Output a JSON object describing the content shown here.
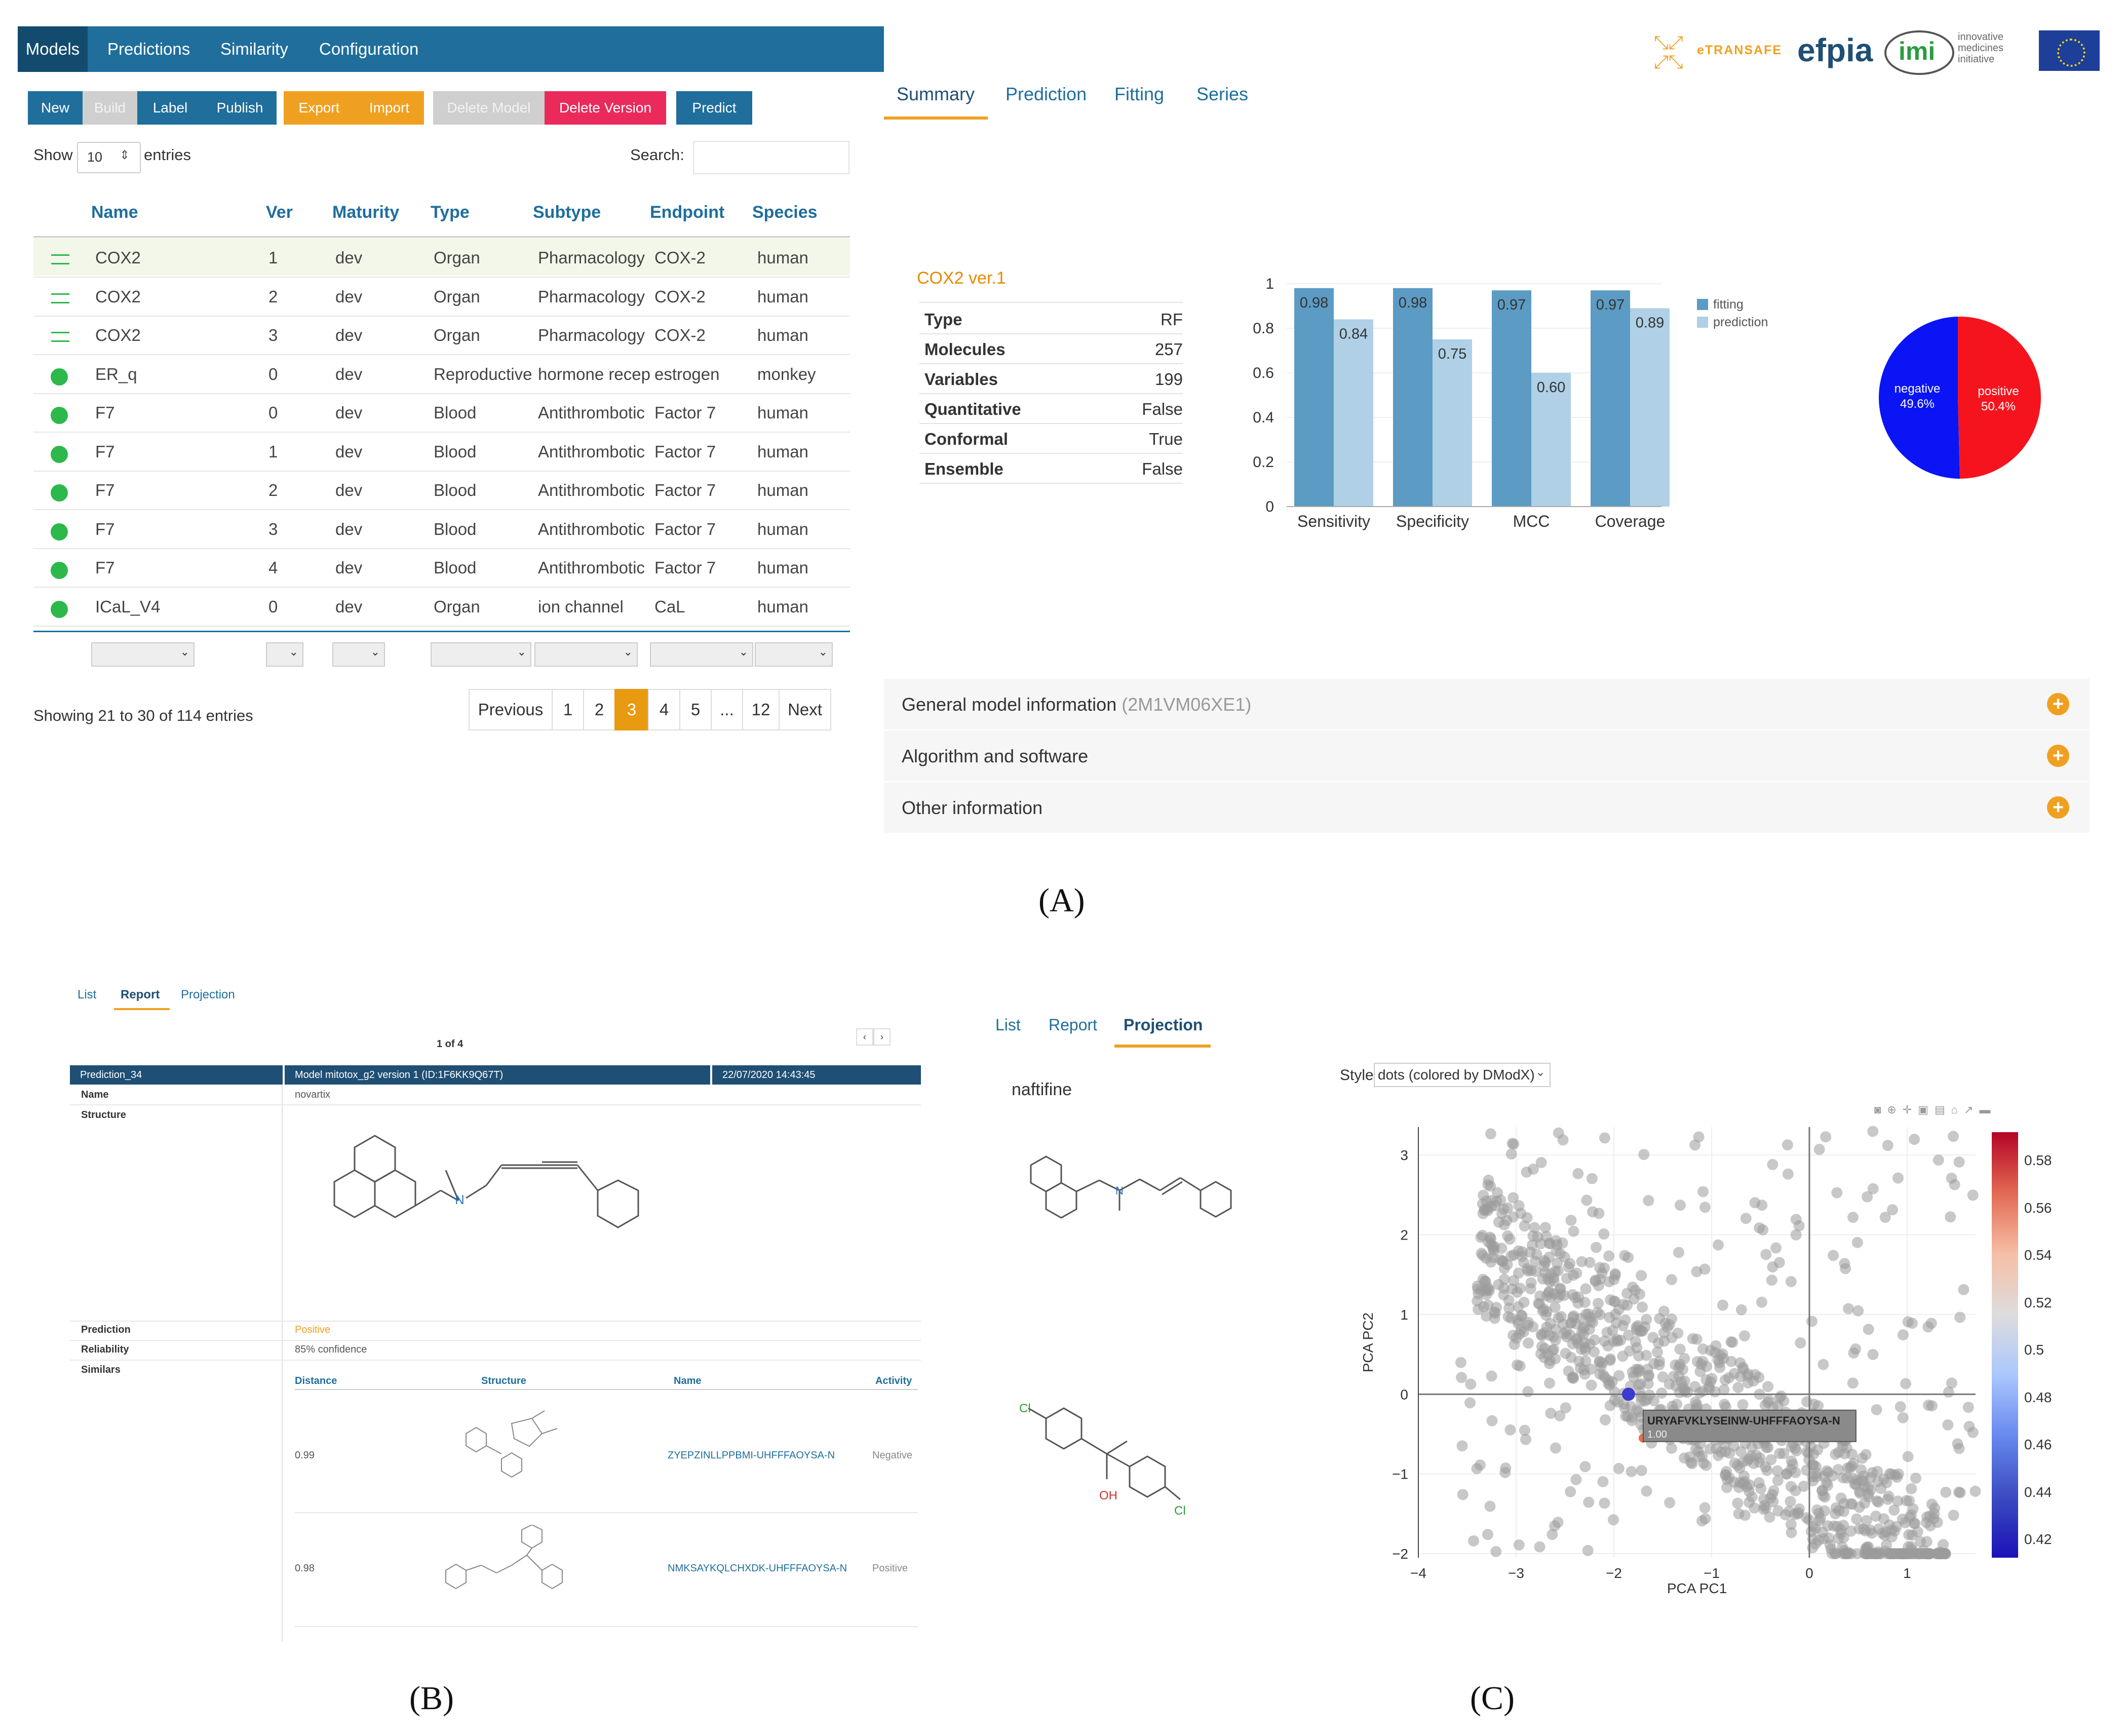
{
  "panelA": {
    "nav": {
      "tabs": [
        "Models",
        "Predictions",
        "Similarity",
        "Configuration"
      ]
    },
    "toolbar": {
      "new": "New",
      "build": "Build",
      "label": "Label",
      "publish": "Publish",
      "export": "Export",
      "import": "Import",
      "delete_model": "Delete Model",
      "delete_version": "Delete Version",
      "predict": "Predict"
    },
    "show_label": "Show",
    "entries_value": "10",
    "entries_label": "entries",
    "search_label": "Search:",
    "columns": [
      "Name",
      "Ver",
      "Maturity",
      "Type",
      "Subtype",
      "Endpoint",
      "Species"
    ],
    "rows": [
      {
        "name": "COX2",
        "ver": "1",
        "maturity": "dev",
        "type": "Organ",
        "subtype": "Pharmacology",
        "endpoint": "COX-2",
        "species": "human",
        "status": "dual"
      },
      {
        "name": "COX2",
        "ver": "2",
        "maturity": "dev",
        "type": "Organ",
        "subtype": "Pharmacology",
        "endpoint": "COX-2",
        "species": "human",
        "status": "dual"
      },
      {
        "name": "COX2",
        "ver": "3",
        "maturity": "dev",
        "type": "Organ",
        "subtype": "Pharmacology",
        "endpoint": "COX-2",
        "species": "human",
        "status": "dual"
      },
      {
        "name": "ER_q",
        "ver": "0",
        "maturity": "dev",
        "type": "Reproductive",
        "subtype": "hormone recep",
        "endpoint": "estrogen",
        "species": "monkey",
        "status": "ok"
      },
      {
        "name": "F7",
        "ver": "0",
        "maturity": "dev",
        "type": "Blood",
        "subtype": "Antithrombotic",
        "endpoint": "Factor 7",
        "species": "human",
        "status": "ok"
      },
      {
        "name": "F7",
        "ver": "1",
        "maturity": "dev",
        "type": "Blood",
        "subtype": "Antithrombotic",
        "endpoint": "Factor 7",
        "species": "human",
        "status": "ok"
      },
      {
        "name": "F7",
        "ver": "2",
        "maturity": "dev",
        "type": "Blood",
        "subtype": "Antithrombotic",
        "endpoint": "Factor 7",
        "species": "human",
        "status": "ok"
      },
      {
        "name": "F7",
        "ver": "3",
        "maturity": "dev",
        "type": "Blood",
        "subtype": "Antithrombotic",
        "endpoint": "Factor 7",
        "species": "human",
        "status": "ok"
      },
      {
        "name": "F7",
        "ver": "4",
        "maturity": "dev",
        "type": "Blood",
        "subtype": "Antithrombotic",
        "endpoint": "Factor 7",
        "species": "human",
        "status": "ok"
      },
      {
        "name": "ICaL_V4",
        "ver": "0",
        "maturity": "dev",
        "type": "Organ",
        "subtype": "ion channel",
        "endpoint": "CaL",
        "species": "human",
        "status": "ok"
      }
    ],
    "showing": "Showing 21 to 30 of 114 entries",
    "pagination": [
      "Previous",
      "1",
      "2",
      "3",
      "4",
      "5",
      "...",
      "12",
      "Next"
    ],
    "logos": {
      "etransafe": "eTRANSAFE",
      "efpia": "efpia",
      "imi": "imi",
      "imi_text": "innovative medicines initiative"
    },
    "subtabs": [
      "Summary",
      "Prediction",
      "Fitting",
      "Series"
    ],
    "model_title": "COX2 ver.1",
    "summary": [
      {
        "k": "Type",
        "v": "RF"
      },
      {
        "k": "Molecules",
        "v": "257"
      },
      {
        "k": "Variables",
        "v": "199"
      },
      {
        "k": "Quantitative",
        "v": "False"
      },
      {
        "k": "Conformal",
        "v": "True"
      },
      {
        "k": "Ensemble",
        "v": "False"
      }
    ],
    "accordion": [
      {
        "title": "General model information",
        "note": "(2M1VM06XE1)"
      },
      {
        "title": "Algorithm and software",
        "note": ""
      },
      {
        "title": "Other information",
        "note": ""
      }
    ],
    "pie_labels": {
      "neg": "negative",
      "neg_pct": "49.6%",
      "pos": "positive",
      "pos_pct": "50.4%"
    },
    "colors": {
      "nav": "#1f6e9c",
      "fitting": "#5b9bc4",
      "prediction": "#afd0e6",
      "negative": "#0a14f5",
      "positive": "#f5141e",
      "accent": "#f0a020"
    }
  },
  "panelB": {
    "tabs": [
      "List",
      "Report",
      "Projection"
    ],
    "page": "1 of 4",
    "header": {
      "prediction": "Prediction_34",
      "model": "Model mitotox_g2 version 1 (ID:1F6KK9Q67T)",
      "date": "22/07/2020 14:43:45"
    },
    "name_label": "Name",
    "name_value": "novartix",
    "structure_label": "Structure",
    "prediction_label": "Prediction",
    "prediction_value": "Positive",
    "reliability_label": "Reliability",
    "reliability_value": "85% confidence",
    "similars_label": "Similars",
    "sim_columns": [
      "Distance",
      "Structure",
      "Name",
      "Activity"
    ],
    "similars": [
      {
        "distance": "0.99",
        "name": "ZYEPZINLLPPBMI-UHFFFAOYSA-N",
        "activity": "Negative"
      },
      {
        "distance": "0.98",
        "name": "NMKSAYKQLCHXDK-UHFFFAOYSA-N",
        "activity": "Positive"
      }
    ]
  },
  "panelC": {
    "tabs": [
      "List",
      "Report",
      "Projection"
    ],
    "compound": "naftifine",
    "style_label": "Style",
    "style_value": "dots (colored by DModX)",
    "tooltip_name": "URYAFVKLYSEINW-UHFFFAOYSA-N",
    "tooltip_value": "1.00",
    "colorbar_ticks": [
      "0.58",
      "0.56",
      "0.54",
      "0.52",
      "0.5",
      "0.48",
      "0.46",
      "0.44",
      "0.42"
    ]
  },
  "captions": [
    "(A)",
    "(B)",
    "(C)"
  ],
  "chart_data": [
    {
      "type": "bar",
      "categories": [
        "Sensitivity",
        "Specificity",
        "MCC",
        "Coverage"
      ],
      "series": [
        {
          "name": "fitting",
          "values": [
            0.98,
            0.98,
            0.97,
            0.97
          ]
        },
        {
          "name": "prediction",
          "values": [
            0.84,
            0.75,
            0.6,
            0.89
          ]
        }
      ],
      "y_ticks": [
        "0",
        "0.2",
        "0.4",
        "0.6",
        "0.8",
        "1"
      ],
      "ylim": [
        0,
        1
      ],
      "legend": "top-right"
    },
    {
      "type": "pie",
      "labels": [
        "negative",
        "positive"
      ],
      "values": [
        49.6,
        50.4
      ]
    },
    {
      "type": "scatter",
      "xlabel": "PCA PC1",
      "ylabel": "PCA PC2",
      "x_ticks": [
        "−4",
        "−3",
        "−2",
        "−1",
        "0",
        "1"
      ],
      "y_ticks": [
        "3",
        "2",
        "1",
        "0",
        "−1",
        "−2"
      ],
      "xlim": [
        -4,
        1.7
      ],
      "ylim": [
        -2.05,
        3.35
      ],
      "highlight": {
        "x": -1.85,
        "y": 0.0
      }
    }
  ]
}
